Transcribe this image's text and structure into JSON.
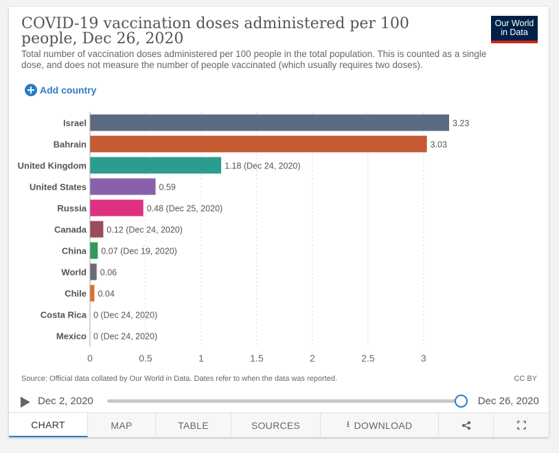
{
  "header": {
    "title": "COVID-19 vaccination doses administered per 100 people, Dec 26, 2020",
    "subtitle": "Total number of vaccination doses administered per 100 people in the total population. This is counted as a single dose, and does not measure the number of people vaccinated (which usually requires two doses).",
    "logo_line1": "Our World",
    "logo_line2": "in Data"
  },
  "controls": {
    "add_country_label": "Add country"
  },
  "chart_data": {
    "type": "bar",
    "orientation": "horizontal",
    "xlim": [
      0,
      3.23
    ],
    "xticks": [
      0,
      0.5,
      1,
      1.5,
      2,
      2.5,
      3
    ],
    "xtick_labels": [
      "0",
      "0.5",
      "1",
      "1.5",
      "2",
      "2.5",
      "3"
    ],
    "grid": "vertical-dashed",
    "bars": [
      {
        "label": "Israel",
        "value": 3.23,
        "value_label": "3.23",
        "color": "#5b6a80"
      },
      {
        "label": "Bahrain",
        "value": 3.03,
        "value_label": "3.03",
        "color": "#c35a30"
      },
      {
        "label": "United Kingdom",
        "value": 1.18,
        "value_label": "1.18 (Dec 24, 2020)",
        "color": "#2a9d8f"
      },
      {
        "label": "United States",
        "value": 0.59,
        "value_label": "0.59",
        "color": "#8a60aa"
      },
      {
        "label": "Russia",
        "value": 0.48,
        "value_label": "0.48 (Dec 25, 2020)",
        "color": "#de3280"
      },
      {
        "label": "Canada",
        "value": 0.12,
        "value_label": "0.12 (Dec 24, 2020)",
        "color": "#9a4d58"
      },
      {
        "label": "China",
        "value": 0.07,
        "value_label": "0.07 (Dec 19, 2020)",
        "color": "#2f9a58"
      },
      {
        "label": "World",
        "value": 0.06,
        "value_label": "0.06",
        "color": "#6b6b72"
      },
      {
        "label": "Chile",
        "value": 0.04,
        "value_label": "0.04",
        "color": "#d8722e"
      },
      {
        "label": "Costa Rica",
        "value": 0,
        "value_label": "0 (Dec 24, 2020)",
        "color": "#3a7cc0"
      },
      {
        "label": "Mexico",
        "value": 0,
        "value_label": "0 (Dec 24, 2020)",
        "color": "#6f8b3a"
      }
    ]
  },
  "footer": {
    "source": "Source: Official data collated by Our World in Data. Dates refer to when the data was reported.",
    "license": "CC BY"
  },
  "timeline": {
    "start_date": "Dec 2, 2020",
    "end_date": "Dec 26, 2020"
  },
  "tabs": [
    {
      "label": "CHART"
    },
    {
      "label": "MAP"
    },
    {
      "label": "TABLE"
    },
    {
      "label": "SOURCES"
    },
    {
      "label": "DOWNLOAD"
    }
  ]
}
